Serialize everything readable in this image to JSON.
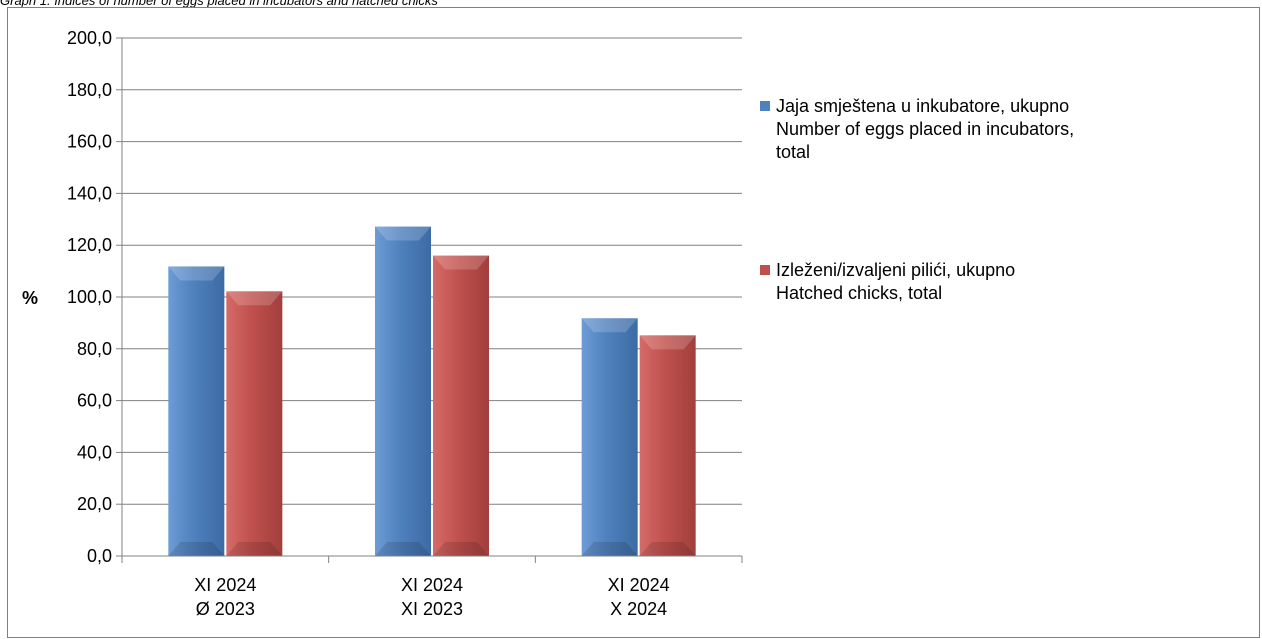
{
  "caption": "Graph 1. Indices of number of eggs placed in incubators and hatched chicks",
  "colors": {
    "series_1": "#4f81bd",
    "series_2": "#c0504d",
    "grid": "#808080",
    "frame": "#808080"
  },
  "chart_data": {
    "type": "bar",
    "title": "",
    "xlabel": "",
    "ylabel": "%",
    "ylim": [
      0,
      200
    ],
    "yticks": [
      "0,0",
      "20,0",
      "40,0",
      "60,0",
      "80,0",
      "100,0",
      "120,0",
      "140,0",
      "160,0",
      "180,0",
      "200,0"
    ],
    "grid": true,
    "legend_position": "right",
    "categories": [
      [
        "XI 2024",
        "Ø 2023"
      ],
      [
        "XI 2024",
        "XI 2023"
      ],
      [
        "XI 2024",
        "X 2024"
      ]
    ],
    "series": [
      {
        "name_lines": [
          "Jaja smještena u inkubatore, ukupno",
          "Number  of eggs placed in incubators,",
          "total"
        ],
        "color": "#4f81bd",
        "values": [
          111.8,
          127.2,
          91.8
        ]
      },
      {
        "name_lines": [
          "Izleženi/izvaljeni pilići, ukupno",
          "Hatched chicks, total"
        ],
        "color": "#c0504d",
        "values": [
          102.2,
          116.0,
          85.2
        ]
      }
    ]
  }
}
